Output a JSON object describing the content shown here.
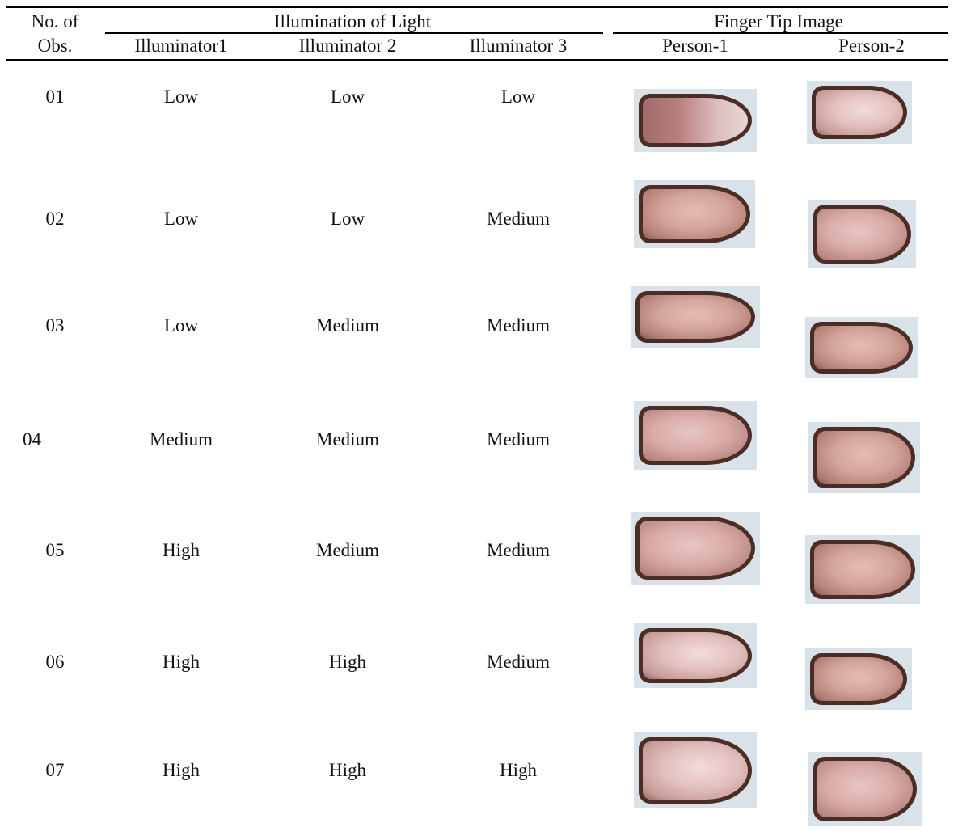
{
  "header": {
    "no_of": "No. of",
    "obs": "Obs.",
    "illumination_group": "Illumination of Light",
    "fingertip_group": "Finger Tip Image",
    "illuminator1": "Illuminator1",
    "illuminator2": "Illuminator 2",
    "illuminator3": "Illuminator 3",
    "person1": "Person-1",
    "person2": "Person-2"
  },
  "rows": [
    {
      "obs": "01",
      "ill1": "Low",
      "ill2": "Low",
      "ill3": "Low",
      "p1_image": "fingertip-image",
      "p2_image": "fingertip-image"
    },
    {
      "obs": "02",
      "ill1": "Low",
      "ill2": "Low",
      "ill3": "Medium",
      "p1_image": "fingertip-image",
      "p2_image": "fingertip-image"
    },
    {
      "obs": "03",
      "ill1": "Low",
      "ill2": "Medium",
      "ill3": "Medium",
      "p1_image": "fingertip-image",
      "p2_image": "fingertip-image"
    },
    {
      "obs": "04",
      "ill1": "Medium",
      "ill2": "Medium",
      "ill3": "Medium",
      "p1_image": "fingertip-image",
      "p2_image": "fingertip-image"
    },
    {
      "obs": "05",
      "ill1": "High",
      "ill2": "Medium",
      "ill3": "Medium",
      "p1_image": "fingertip-image",
      "p2_image": "fingertip-image"
    },
    {
      "obs": "06",
      "ill1": "High",
      "ill2": "High",
      "ill3": "Medium",
      "p1_image": "fingertip-image",
      "p2_image": "fingertip-image"
    },
    {
      "obs": "07",
      "ill1": "High",
      "ill2": "High",
      "ill3": "High",
      "p1_image": "fingertip-image",
      "p2_image": "fingertip-image"
    }
  ],
  "colors": {
    "rule": "#000000",
    "text": "#111111",
    "frame_rim": "#4a2e26",
    "image_bg": "#d9e2e8"
  }
}
